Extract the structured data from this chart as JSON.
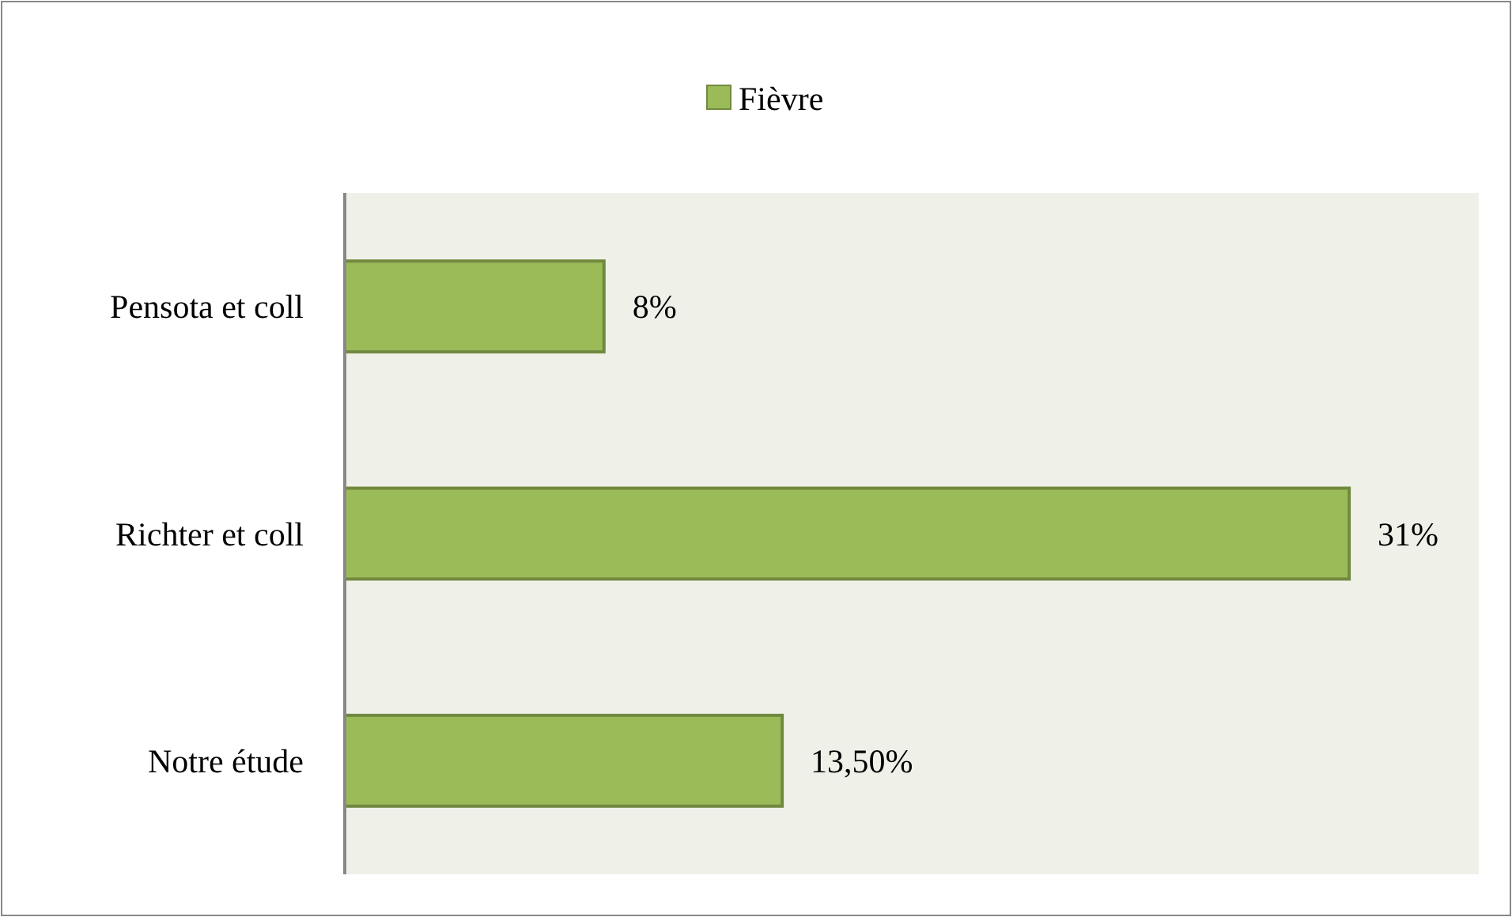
{
  "chart_data": {
    "type": "bar",
    "orientation": "horizontal",
    "categories": [
      "Pensota et coll",
      "Richter et coll",
      "Notre étude"
    ],
    "series": [
      {
        "name": "Fièvre",
        "color": "#9bbb59",
        "values": [
          8,
          31,
          13.5
        ],
        "value_labels": [
          "8%",
          "31%",
          "13,50%"
        ]
      }
    ],
    "xlim": [
      0,
      35
    ],
    "tick_labels": "y",
    "legend": "top",
    "grid": false
  }
}
